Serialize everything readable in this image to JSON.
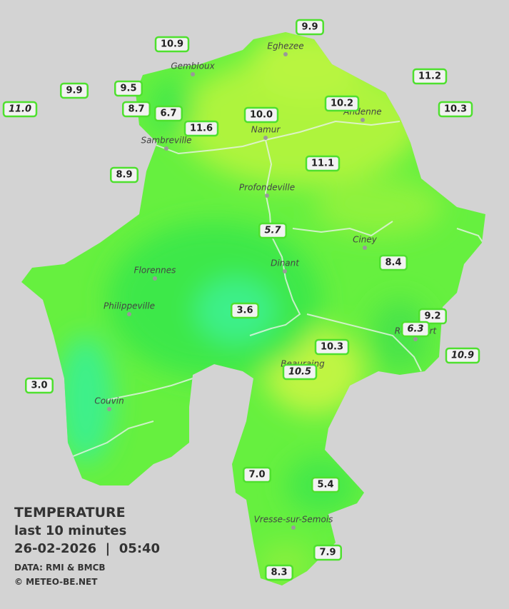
{
  "title": {
    "heading": "TEMPERATURE",
    "period": "last 10 minutes",
    "timestamp": "26-02-2026  |  05:40",
    "source": "DATA: RMI & BMCB",
    "copyright": "© METEO-BE.NET"
  },
  "cities": [
    "Eghezee",
    "Gembloux",
    "Andenne",
    "Namur",
    "Sambreville",
    "Profondeville",
    "Ciney",
    "Dinant",
    "Florennes",
    "Philippeville",
    "Rochefort",
    "Beauraing",
    "Couvin",
    "Vresse-sur-Semois"
  ],
  "stations": [
    "9.9",
    "10.9",
    "11.2",
    "9.9",
    "9.5",
    "11.0",
    "8.7",
    "6.7",
    "10.0",
    "10.2",
    "10.3",
    "11.6",
    "11.1",
    "8.9",
    "5.7",
    "8.4",
    "3.6",
    "9.2",
    "6.3",
    "10.3",
    "10.9",
    "10.5",
    "3.0",
    "7.0",
    "5.4",
    "7.9",
    "8.3"
  ]
}
